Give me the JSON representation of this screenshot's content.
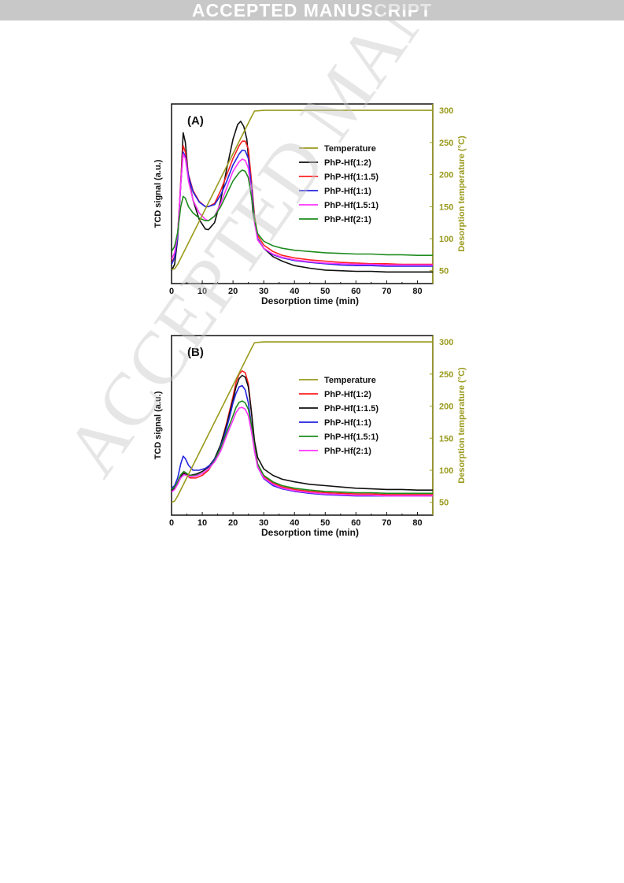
{
  "banner": {
    "text": "ACCEPTED MANUSCRIPT"
  },
  "watermark": {
    "text": "ACCEPTED MANUSCRIPT"
  },
  "colors": {
    "Temperature": "#9a9a1e",
    "black": "#111111",
    "red": "#ff2020",
    "blue": "#2323e0",
    "magenta": "#ff33ff",
    "green": "#1e8c1e"
  },
  "chart_data": [
    {
      "type": "line",
      "panel_label": "(A)",
      "xlabel": "Desorption time (min)",
      "ylabel": "TCD signal (a.u.)",
      "y2label": "Desorption temperature (°C)",
      "xlim": [
        0,
        85
      ],
      "xticks": [
        0,
        10,
        20,
        30,
        40,
        50,
        60,
        70,
        80
      ],
      "y2lim": [
        30,
        310
      ],
      "y2ticks": [
        50,
        100,
        150,
        200,
        250,
        300
      ],
      "legend_position": "right",
      "temperature": {
        "name": "Temperature",
        "color": "#9a9a1e",
        "x": [
          0,
          1,
          2,
          26,
          27,
          30,
          85
        ],
        "y": [
          52,
          53,
          60,
          290,
          299,
          300,
          300
        ]
      },
      "series": [
        {
          "name": "PhP-Hf(1:2)",
          "color": "#111111",
          "x": [
            0,
            1,
            2,
            3,
            3.8,
            4.5,
            5.5,
            7,
            9,
            11,
            12,
            14,
            16,
            18,
            20,
            21.5,
            22.5,
            23.5,
            24.5,
            25.5,
            26.5,
            28,
            30,
            33,
            36,
            40,
            45,
            50,
            55,
            60,
            65,
            70,
            75,
            80,
            85
          ],
          "y": [
            50,
            60,
            100,
            185,
            265,
            250,
            195,
            160,
            130,
            115,
            114,
            125,
            160,
            210,
            255,
            278,
            283,
            275,
            255,
            200,
            140,
            100,
            85,
            72,
            65,
            58,
            54,
            51,
            50,
            49,
            49,
            48,
            48,
            48,
            48
          ]
        },
        {
          "name": "PhP-Hf(1:1.5)",
          "color": "#ff2020",
          "x": [
            0,
            1,
            2,
            3,
            3.8,
            4.5,
            5.5,
            7,
            9,
            11,
            12,
            14,
            16,
            18,
            20,
            22,
            23,
            24,
            25,
            26,
            27,
            28,
            30,
            33,
            36,
            40,
            45,
            50,
            55,
            60,
            65,
            70,
            75,
            80,
            85
          ],
          "y": [
            62,
            72,
            105,
            190,
            245,
            235,
            200,
            175,
            158,
            150,
            150,
            155,
            175,
            200,
            225,
            245,
            252,
            252,
            240,
            190,
            135,
            105,
            90,
            80,
            74,
            70,
            67,
            65,
            63,
            62,
            61,
            61,
            60,
            60,
            60
          ]
        },
        {
          "name": "PhP-Hf(1:1)",
          "color": "#2323e0",
          "x": [
            0,
            1,
            2,
            3,
            3.8,
            4.5,
            5.5,
            7,
            9,
            11,
            12,
            14,
            16,
            18,
            20,
            22,
            23,
            24,
            25,
            26,
            27,
            28,
            30,
            33,
            36,
            40,
            45,
            50,
            55,
            60,
            65,
            70,
            75,
            80,
            85
          ],
          "y": [
            60,
            70,
            103,
            185,
            235,
            228,
            198,
            173,
            157,
            150,
            150,
            153,
            168,
            190,
            215,
            232,
            238,
            237,
            225,
            180,
            130,
            100,
            85,
            75,
            70,
            66,
            63,
            61,
            59,
            58,
            58,
            57,
            57,
            57,
            57
          ]
        },
        {
          "name": "PhP-Hf(1.5:1)",
          "color": "#ff33ff",
          "x": [
            0,
            1,
            2,
            3,
            3.8,
            4.5,
            5.5,
            7,
            9,
            11,
            12,
            14,
            16,
            18,
            20,
            22,
            23,
            24,
            25,
            26,
            27,
            28,
            30,
            33,
            36,
            40,
            45,
            50,
            55,
            60,
            65,
            70,
            75,
            80,
            85
          ],
          "y": [
            68,
            78,
            108,
            185,
            232,
            225,
            190,
            160,
            140,
            130,
            128,
            135,
            155,
            180,
            205,
            220,
            224,
            222,
            210,
            170,
            125,
            98,
            85,
            76,
            71,
            67,
            64,
            62,
            61,
            60,
            60,
            59,
            59,
            59,
            59
          ]
        },
        {
          "name": "PhP-Hf(2:1)",
          "color": "#1e8c1e",
          "x": [
            0,
            1,
            2,
            3,
            3.8,
            4.5,
            5.5,
            7,
            9,
            11,
            12,
            14,
            16,
            18,
            20,
            22,
            23,
            24,
            25,
            26,
            27,
            28,
            30,
            33,
            36,
            40,
            45,
            50,
            55,
            60,
            65,
            70,
            75,
            80,
            85
          ],
          "y": [
            80,
            88,
            110,
            150,
            166,
            163,
            150,
            140,
            132,
            128,
            128,
            135,
            150,
            170,
            190,
            203,
            207,
            205,
            195,
            165,
            130,
            108,
            96,
            89,
            85,
            82,
            80,
            78,
            77,
            76,
            76,
            75,
            75,
            74,
            74
          ]
        }
      ]
    },
    {
      "type": "line",
      "panel_label": "(B)",
      "xlabel": "Desorption time (min)",
      "ylabel": "TCD signal (a.u.)",
      "y2label": "Desorption temperature (°C)",
      "xlim": [
        0,
        85
      ],
      "xticks": [
        0,
        10,
        20,
        30,
        40,
        50,
        60,
        70,
        80
      ],
      "y2lim": [
        30,
        310
      ],
      "y2ticks": [
        50,
        100,
        150,
        200,
        250,
        300
      ],
      "legend_position": "right",
      "temperature": {
        "name": "Temperature",
        "color": "#9a9a1e",
        "x": [
          0,
          1,
          2,
          26,
          27,
          30,
          85
        ],
        "y": [
          50,
          52,
          60,
          290,
          299,
          300,
          300
        ]
      },
      "series": [
        {
          "name": "PhP-Hf(1:2)",
          "color": "#ff2020",
          "x": [
            0,
            1,
            2,
            3,
            4,
            5,
            6,
            8,
            10,
            12,
            14,
            16,
            18,
            20,
            21,
            22,
            23,
            24,
            25,
            26,
            27,
            28,
            30,
            33,
            36,
            40,
            45,
            50,
            55,
            60,
            65,
            70,
            75,
            80,
            85
          ],
          "y": [
            72,
            75,
            82,
            92,
            96,
            92,
            88,
            88,
            92,
            100,
            115,
            140,
            175,
            215,
            237,
            250,
            255,
            252,
            235,
            190,
            140,
            110,
            90,
            80,
            74,
            70,
            67,
            65,
            64,
            63,
            63,
            62,
            62,
            62,
            62
          ]
        },
        {
          "name": "PhP-Hf(1:1.5)",
          "color": "#111111",
          "x": [
            0,
            1,
            2,
            3,
            4,
            5,
            6,
            8,
            10,
            12,
            14,
            16,
            18,
            20,
            21,
            22,
            23,
            24,
            25,
            26,
            27,
            28,
            30,
            33,
            36,
            40,
            45,
            50,
            55,
            60,
            65,
            70,
            75,
            80,
            85
          ],
          "y": [
            68,
            72,
            80,
            90,
            95,
            93,
            92,
            94,
            98,
            105,
            118,
            140,
            172,
            210,
            230,
            243,
            248,
            245,
            230,
            190,
            145,
            120,
            102,
            92,
            86,
            82,
            78,
            76,
            74,
            72,
            71,
            70,
            70,
            69,
            69
          ]
        },
        {
          "name": "PhP-Hf(1:1)",
          "color": "#2323e0",
          "x": [
            0,
            1,
            2,
            3,
            3.8,
            4.5,
            5.5,
            7,
            9,
            11,
            13,
            15,
            17,
            19,
            20,
            21,
            22,
            23,
            24,
            25,
            26,
            27,
            28,
            30,
            33,
            36,
            40,
            45,
            50,
            55,
            60,
            65,
            70,
            75,
            80,
            85
          ],
          "y": [
            72,
            76,
            88,
            110,
            122,
            118,
            108,
            100,
            100,
            103,
            110,
            125,
            150,
            185,
            205,
            220,
            230,
            232,
            225,
            205,
            170,
            130,
            105,
            87,
            76,
            71,
            67,
            64,
            62,
            61,
            60,
            60,
            60,
            60,
            60,
            60
          ]
        },
        {
          "name": "PhP-Hf(1.5:1)",
          "color": "#1e8c1e",
          "x": [
            0,
            1,
            2,
            3,
            4,
            5,
            6,
            8,
            10,
            12,
            14,
            16,
            18,
            20,
            21,
            22,
            23,
            24,
            25,
            26,
            27,
            28,
            30,
            33,
            36,
            40,
            45,
            50,
            55,
            60,
            65,
            70,
            75,
            80,
            85
          ],
          "y": [
            70,
            74,
            82,
            93,
            98,
            95,
            92,
            92,
            95,
            102,
            115,
            135,
            160,
            185,
            198,
            206,
            208,
            205,
            195,
            170,
            135,
            110,
            92,
            82,
            76,
            72,
            69,
            67,
            66,
            65,
            65,
            64,
            64,
            64,
            64
          ]
        },
        {
          "name": "PhP-Hf(2:1)",
          "color": "#ff33ff",
          "x": [
            0,
            1,
            2,
            3,
            4,
            5,
            6,
            8,
            10,
            12,
            14,
            16,
            18,
            20,
            21,
            22,
            23,
            24,
            25,
            26,
            27,
            28,
            30,
            33,
            36,
            40,
            45,
            50,
            55,
            60,
            65,
            70,
            75,
            80,
            85
          ],
          "y": [
            66,
            70,
            78,
            88,
            93,
            92,
            90,
            91,
            95,
            102,
            113,
            130,
            155,
            178,
            190,
            197,
            198,
            195,
            185,
            160,
            130,
            105,
            88,
            78,
            72,
            68,
            65,
            63,
            62,
            61,
            61,
            60,
            60,
            60,
            60
          ]
        }
      ]
    }
  ]
}
